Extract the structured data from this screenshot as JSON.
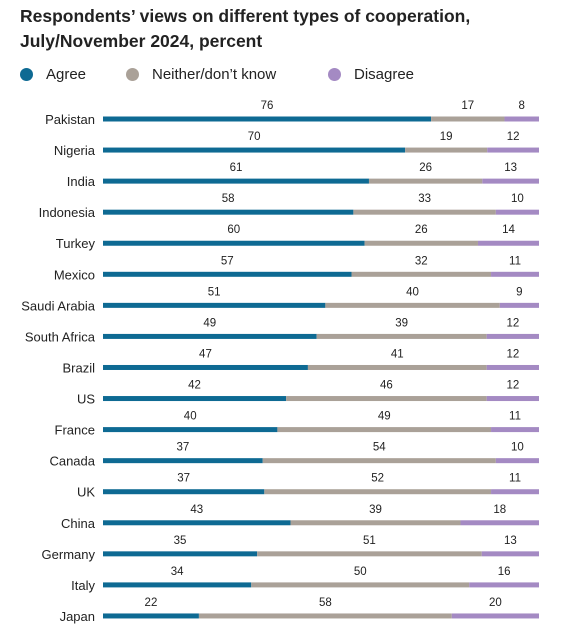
{
  "title": {
    "line1": "Respondents’ views on different types of cooperation,",
    "line2": "July/November 2024, percent"
  },
  "legend": [
    {
      "label": "Agree",
      "color": "#0e6a93"
    },
    {
      "label": "Neither/don’t know",
      "color": "#aaa198"
    },
    {
      "label": "Disagree",
      "color": "#a48ac3"
    }
  ],
  "chart_data": {
    "type": "bar",
    "orientation": "horizontal",
    "stacked": true,
    "xlim": [
      0,
      100
    ],
    "grid": false,
    "legend_position": "top",
    "categories": [
      "Pakistan",
      "Nigeria",
      "India",
      "Indonesia",
      "Turkey",
      "Mexico",
      "Saudi Arabia",
      "South Africa",
      "Brazil",
      "US",
      "France",
      "Canada",
      "UK",
      "China",
      "Germany",
      "Italy",
      "Japan"
    ],
    "series": [
      {
        "name": "Agree",
        "color": "#0e6a93",
        "values": [
          76,
          70,
          61,
          58,
          60,
          57,
          51,
          49,
          47,
          42,
          40,
          37,
          37,
          43,
          35,
          34,
          22
        ]
      },
      {
        "name": "Neither/don’t know",
        "color": "#aaa198",
        "values": [
          17,
          19,
          26,
          33,
          26,
          32,
          40,
          39,
          41,
          46,
          49,
          54,
          52,
          39,
          51,
          50,
          58
        ]
      },
      {
        "name": "Disagree",
        "color": "#a48ac3",
        "values": [
          8,
          12,
          13,
          10,
          14,
          11,
          9,
          12,
          12,
          12,
          11,
          10,
          11,
          18,
          13,
          16,
          20
        ]
      }
    ]
  }
}
